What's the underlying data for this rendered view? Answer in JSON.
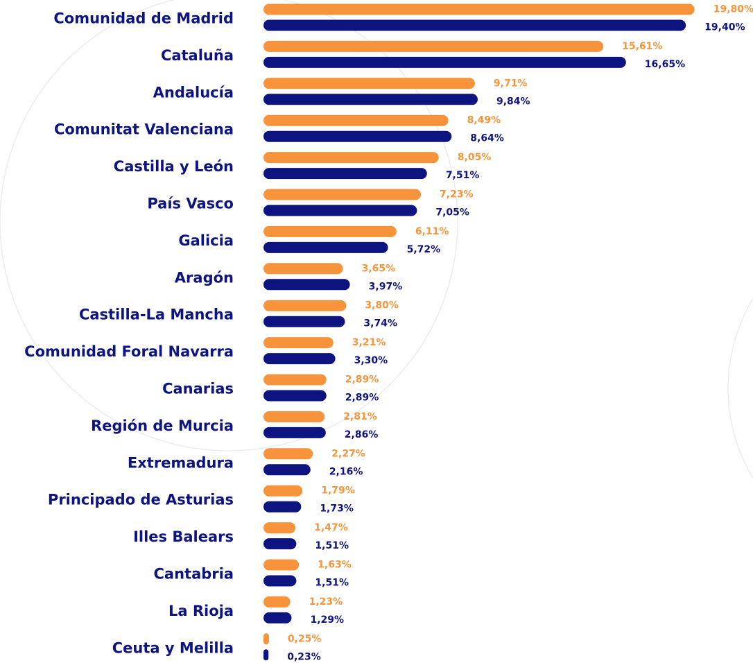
{
  "chart_data": {
    "type": "bar",
    "categories": [
      "Comunidad de Madrid",
      "Cataluña",
      "Andalucía",
      "Comunitat Valenciana",
      "Castilla y León",
      "País Vasco",
      "Galicia",
      "Aragón",
      "Castilla-La Mancha",
      "Comunidad Foral Navarra",
      "Canarias",
      "Región de Murcia",
      "Extremadura",
      "Principado de Asturias",
      "Illes Balears",
      "Cantabria",
      "La Rioja",
      "Ceuta y  Melilla"
    ],
    "series": [
      {
        "color": "#f7943b",
        "values": [
          19.8,
          15.61,
          9.71,
          8.49,
          8.05,
          7.23,
          6.11,
          3.65,
          3.8,
          3.21,
          2.89,
          2.81,
          2.27,
          1.79,
          1.47,
          1.63,
          1.23,
          0.25
        ],
        "value_labels": [
          "19,80%",
          "15,61%",
          "9,71%",
          "8,49%",
          "8,05%",
          "7,23%",
          "6,11%",
          "3,65%",
          "3,80%",
          "3,21%",
          "2,89%",
          "2,81%",
          "2,27%",
          "1,79%",
          "1,47%",
          "1,63%",
          "1,23%",
          "0,25%"
        ]
      },
      {
        "color": "#0d1480",
        "values": [
          19.4,
          16.65,
          9.84,
          8.64,
          7.51,
          7.05,
          5.72,
          3.97,
          3.74,
          3.3,
          2.89,
          2.86,
          2.16,
          1.73,
          1.51,
          1.51,
          1.29,
          0.23
        ],
        "value_labels": [
          "19,40%",
          "16,65%",
          "9,84%",
          "8,64%",
          "7,51%",
          "7,05%",
          "5,72%",
          "3,97%",
          "3,74%",
          "3,30%",
          "2,89%",
          "2,86%",
          "2,16%",
          "1,73%",
          "1,51%",
          "1,51%",
          "1,29%",
          "0,23%"
        ]
      }
    ]
  }
}
